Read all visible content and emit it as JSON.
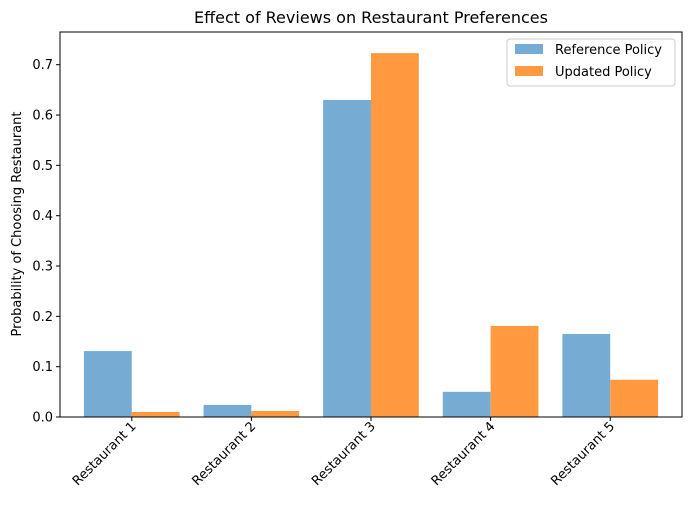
{
  "chart_data": {
    "type": "bar",
    "title": "Effect of Reviews on Restaurant Preferences",
    "xlabel": "",
    "ylabel": "Probability of Choosing Restaurant",
    "categories": [
      "Restaurant 1",
      "Restaurant 2",
      "Restaurant 3",
      "Restaurant 4",
      "Restaurant 5"
    ],
    "series": [
      {
        "name": "Reference Policy",
        "values": [
          0.131,
          0.024,
          0.63,
          0.05,
          0.165
        ],
        "color": "#76acd3"
      },
      {
        "name": "Updated Policy",
        "values": [
          0.01,
          0.012,
          0.723,
          0.181,
          0.074
        ],
        "color": "#ff9a40"
      }
    ],
    "ylim": [
      0,
      0.765
    ],
    "yticks": [
      "0.0",
      "0.1",
      "0.2",
      "0.3",
      "0.4",
      "0.5",
      "0.6",
      "0.7"
    ],
    "grid": false,
    "legend_position": "top-right"
  }
}
